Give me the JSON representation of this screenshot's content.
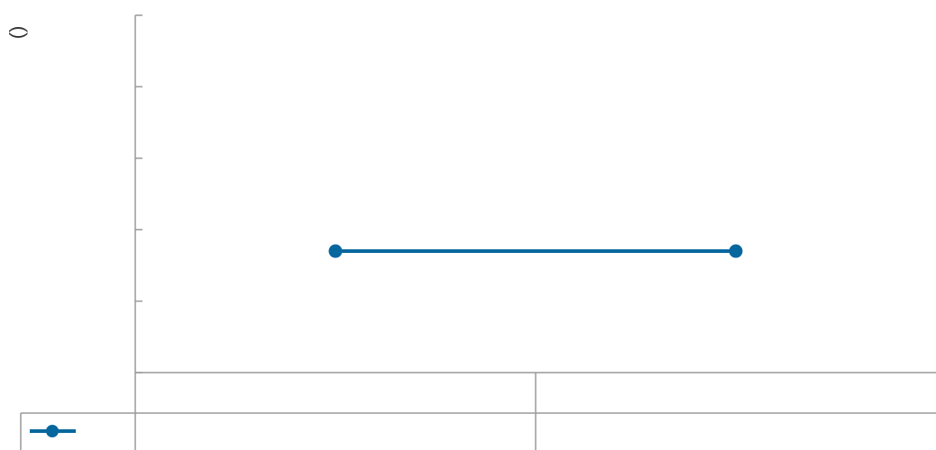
{
  "chart_data": {
    "type": "line",
    "y_label": "()",
    "categories": [
      null,
      null
    ],
    "series": [
      {
        "color": "#05679d",
        "values": [
          1.7,
          1.7
        ]
      }
    ],
    "ylim": [
      0,
      5
    ],
    "yticks": [
      0,
      1,
      2,
      3,
      4,
      5
    ],
    "grid": false,
    "data_table": true
  }
}
